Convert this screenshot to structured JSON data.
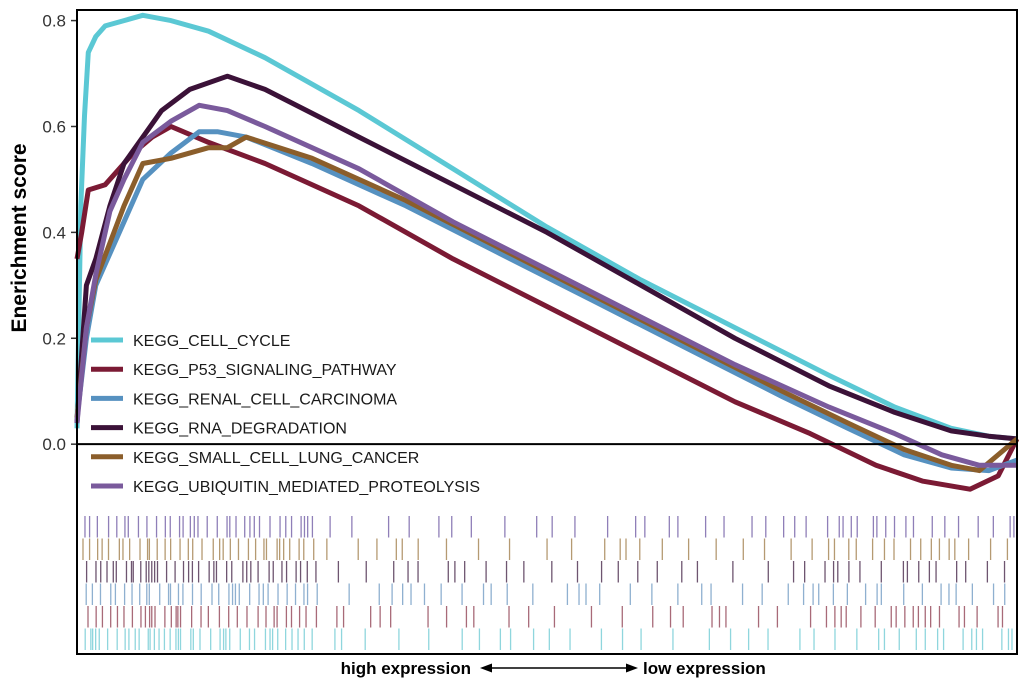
{
  "chart_data": {
    "type": "line",
    "ylabel": "Enerichment score",
    "xlabel_left": "high expression",
    "xlabel_right": "low expression",
    "ylim": [
      -0.13,
      0.82
    ],
    "x_range": [
      0,
      1
    ],
    "yticks": [
      0.0,
      0.2,
      0.4,
      0.6,
      0.8
    ],
    "ytick_labels": [
      "0.0",
      "0.2",
      "0.4",
      "0.6",
      "0.8"
    ],
    "legend_position": "lower-left",
    "series": [
      {
        "name": "KEGG_CELL_CYCLE",
        "color": "#5bc8d4",
        "points": [
          [
            0,
            0.03
          ],
          [
            0.004,
            0.45
          ],
          [
            0.008,
            0.62
          ],
          [
            0.012,
            0.74
          ],
          [
            0.02,
            0.77
          ],
          [
            0.03,
            0.79
          ],
          [
            0.05,
            0.8
          ],
          [
            0.07,
            0.81
          ],
          [
            0.1,
            0.8
          ],
          [
            0.14,
            0.78
          ],
          [
            0.2,
            0.73
          ],
          [
            0.3,
            0.63
          ],
          [
            0.4,
            0.52
          ],
          [
            0.5,
            0.41
          ],
          [
            0.6,
            0.31
          ],
          [
            0.7,
            0.22
          ],
          [
            0.8,
            0.13
          ],
          [
            0.87,
            0.07
          ],
          [
            0.93,
            0.03
          ],
          [
            0.97,
            0.015
          ],
          [
            1.0,
            0.01
          ]
        ]
      },
      {
        "name": "KEGG_P53_SIGNALING_PATHWAY",
        "color": "#7b1a34",
        "points": [
          [
            0,
            0.35
          ],
          [
            0.005,
            0.4
          ],
          [
            0.012,
            0.48
          ],
          [
            0.03,
            0.49
          ],
          [
            0.045,
            0.52
          ],
          [
            0.06,
            0.55
          ],
          [
            0.08,
            0.58
          ],
          [
            0.1,
            0.6
          ],
          [
            0.14,
            0.57
          ],
          [
            0.2,
            0.53
          ],
          [
            0.3,
            0.45
          ],
          [
            0.4,
            0.35
          ],
          [
            0.5,
            0.26
          ],
          [
            0.6,
            0.17
          ],
          [
            0.7,
            0.08
          ],
          [
            0.78,
            0.02
          ],
          [
            0.85,
            -0.04
          ],
          [
            0.9,
            -0.07
          ],
          [
            0.95,
            -0.085
          ],
          [
            0.98,
            -0.06
          ],
          [
            1.0,
            0.01
          ]
        ]
      },
      {
        "name": "KEGG_RENAL_CELL_CARCINOMA",
        "color": "#5691c0",
        "points": [
          [
            0,
            0.05
          ],
          [
            0.01,
            0.2
          ],
          [
            0.02,
            0.3
          ],
          [
            0.035,
            0.36
          ],
          [
            0.05,
            0.42
          ],
          [
            0.07,
            0.5
          ],
          [
            0.1,
            0.55
          ],
          [
            0.13,
            0.59
          ],
          [
            0.15,
            0.59
          ],
          [
            0.18,
            0.58
          ],
          [
            0.25,
            0.53
          ],
          [
            0.35,
            0.45
          ],
          [
            0.45,
            0.36
          ],
          [
            0.55,
            0.27
          ],
          [
            0.65,
            0.18
          ],
          [
            0.75,
            0.09
          ],
          [
            0.82,
            0.03
          ],
          [
            0.88,
            -0.02
          ],
          [
            0.93,
            -0.045
          ],
          [
            0.97,
            -0.05
          ],
          [
            1.0,
            -0.03
          ]
        ]
      },
      {
        "name": "KEGG_RNA_DEGRADATION",
        "color": "#3b1238",
        "points": [
          [
            0,
            0.04
          ],
          [
            0.01,
            0.3
          ],
          [
            0.02,
            0.35
          ],
          [
            0.035,
            0.45
          ],
          [
            0.05,
            0.53
          ],
          [
            0.07,
            0.58
          ],
          [
            0.09,
            0.63
          ],
          [
            0.12,
            0.67
          ],
          [
            0.16,
            0.695
          ],
          [
            0.2,
            0.67
          ],
          [
            0.3,
            0.58
          ],
          [
            0.4,
            0.49
          ],
          [
            0.5,
            0.4
          ],
          [
            0.6,
            0.3
          ],
          [
            0.7,
            0.2
          ],
          [
            0.8,
            0.11
          ],
          [
            0.87,
            0.06
          ],
          [
            0.93,
            0.025
          ],
          [
            0.97,
            0.015
          ],
          [
            1.0,
            0.01
          ]
        ]
      },
      {
        "name": "KEGG_SMALL_CELL_LUNG_CANCER",
        "color": "#8b5e2b",
        "points": [
          [
            0,
            0.05
          ],
          [
            0.01,
            0.22
          ],
          [
            0.02,
            0.31
          ],
          [
            0.035,
            0.38
          ],
          [
            0.05,
            0.45
          ],
          [
            0.07,
            0.53
          ],
          [
            0.1,
            0.54
          ],
          [
            0.14,
            0.56
          ],
          [
            0.16,
            0.56
          ],
          [
            0.18,
            0.58
          ],
          [
            0.25,
            0.54
          ],
          [
            0.35,
            0.46
          ],
          [
            0.45,
            0.37
          ],
          [
            0.55,
            0.28
          ],
          [
            0.65,
            0.19
          ],
          [
            0.75,
            0.1
          ],
          [
            0.82,
            0.04
          ],
          [
            0.88,
            -0.01
          ],
          [
            0.93,
            -0.04
          ],
          [
            0.96,
            -0.05
          ],
          [
            1.0,
            0.01
          ]
        ]
      },
      {
        "name": "KEGG_UBIQUITIN_MEDIATED_PROTEOLYSIS",
        "color": "#7a5a9c",
        "points": [
          [
            0,
            0.04
          ],
          [
            0.01,
            0.22
          ],
          [
            0.02,
            0.32
          ],
          [
            0.035,
            0.44
          ],
          [
            0.05,
            0.5
          ],
          [
            0.07,
            0.57
          ],
          [
            0.1,
            0.61
          ],
          [
            0.13,
            0.64
          ],
          [
            0.16,
            0.63
          ],
          [
            0.2,
            0.6
          ],
          [
            0.3,
            0.52
          ],
          [
            0.4,
            0.42
          ],
          [
            0.5,
            0.33
          ],
          [
            0.6,
            0.24
          ],
          [
            0.7,
            0.15
          ],
          [
            0.8,
            0.07
          ],
          [
            0.87,
            0.02
          ],
          [
            0.92,
            -0.02
          ],
          [
            0.96,
            -0.04
          ],
          [
            1.0,
            -0.04
          ]
        ]
      }
    ],
    "hit_tracks": [
      {
        "name": "KEGG_UBIQUITIN_MEDIATED_PROTEOLYSIS",
        "color": "#8f7fb8"
      },
      {
        "name": "KEGG_SMALL_CELL_LUNG_CANCER",
        "color": "#b59a72"
      },
      {
        "name": "KEGG_RNA_DEGRADATION",
        "color": "#6e5570"
      },
      {
        "name": "KEGG_RENAL_CELL_CARCINOMA",
        "color": "#8fb0d0"
      },
      {
        "name": "KEGG_P53_SIGNALING_PATHWAY",
        "color": "#a86a78"
      },
      {
        "name": "KEGG_CELL_CYCLE",
        "color": "#8fd6dd"
      }
    ]
  }
}
